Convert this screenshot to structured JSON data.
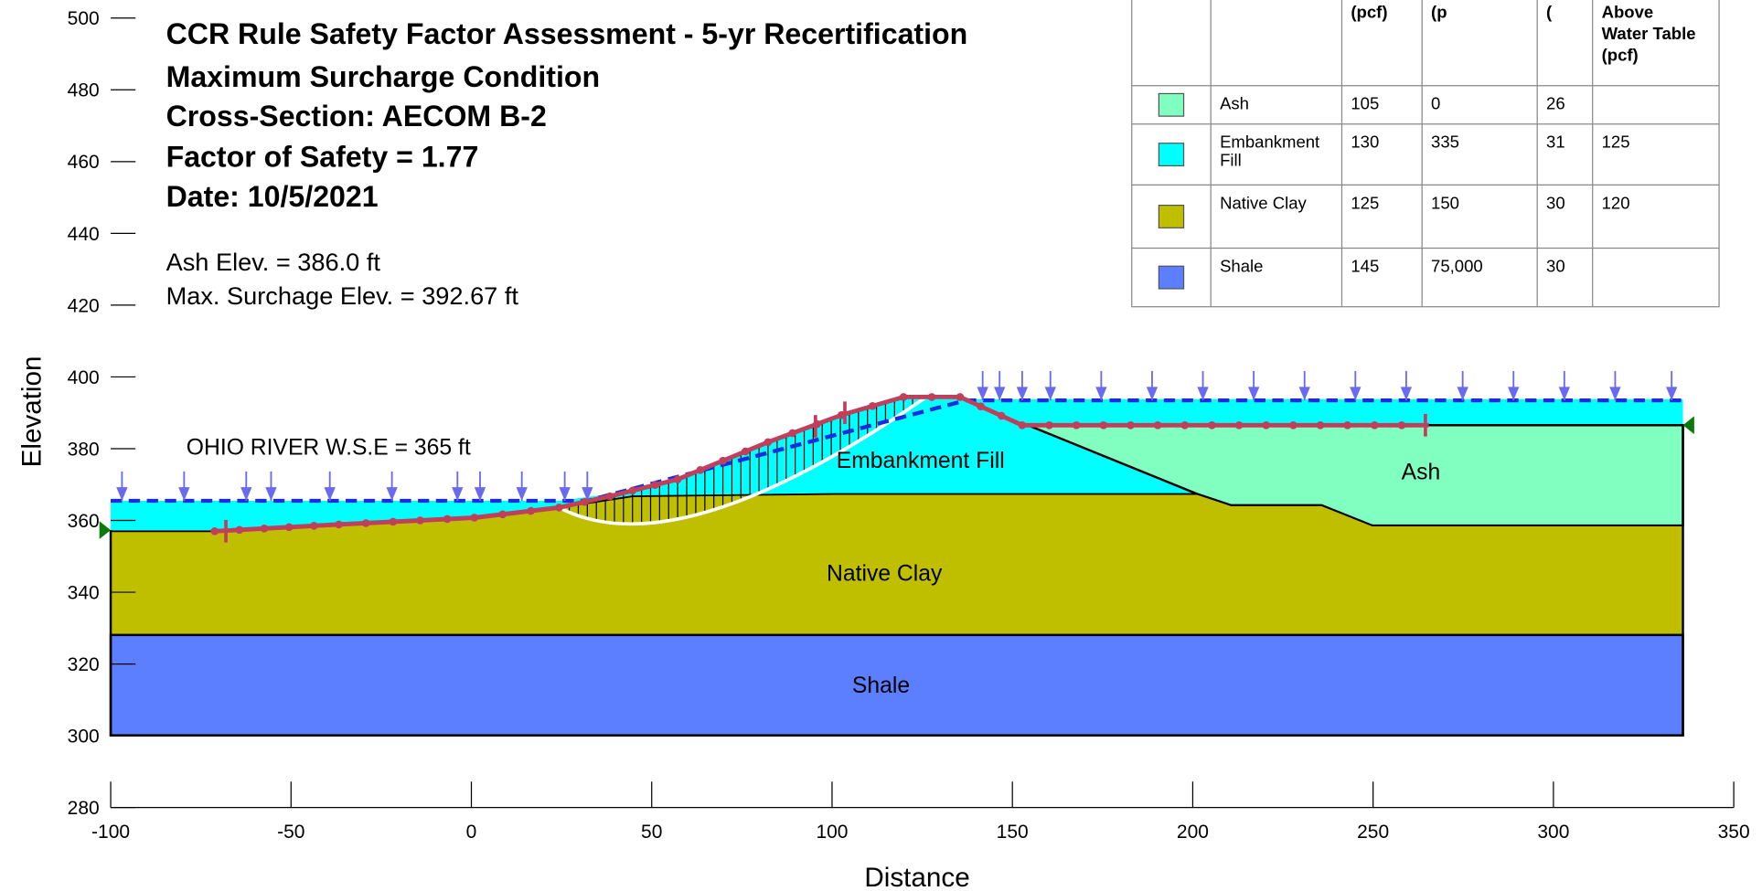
{
  "title_lines": [
    "CCR Rule Safety Factor Assessment - 5-yr Recertification",
    "Maximum Surcharge Condition",
    "Cross-Section: AECOM B-2",
    "Factor of Safety = 1.77",
    "Date: 10/5/2021"
  ],
  "notes": [
    "Ash Elev. = 386.0 ft",
    "Max. Surchage Elev. = 392.67 ft"
  ],
  "river_label": "OHIO RIVER W.S.E = 365 ft",
  "layer_labels": {
    "embankment": "Embankment Fill",
    "ash": "Ash",
    "clay": "Native Clay",
    "shale": "Shale"
  },
  "axes": {
    "x_label": "Distance",
    "y_label": "Elevation",
    "xlim": [
      -100,
      350
    ],
    "xticks": [
      -100,
      -50,
      0,
      50,
      100,
      150,
      200,
      250,
      300,
      350
    ],
    "ylim": [
      280,
      500
    ],
    "yticks": [
      280,
      300,
      320,
      340,
      360,
      380,
      400,
      420,
      440,
      460,
      480,
      500
    ]
  },
  "table": {
    "header": [
      "(pcf)",
      "(p",
      "(",
      "Above Water Table (pcf)"
    ],
    "rows": [
      {
        "color": "#80ffc0",
        "cells": [
          "Ash",
          "105",
          "0",
          "26",
          null
        ]
      },
      {
        "color": "#00ffff",
        "cells": [
          "Embankment Fill",
          "130",
          "335",
          "31",
          "125"
        ]
      },
      {
        "color": "#bfbf00",
        "cells": [
          "Native Clay",
          "125",
          "150",
          "30",
          "120"
        ]
      },
      {
        "color": "#5b7fff",
        "cells": [
          "Shale",
          "145",
          "75,000",
          "30",
          null
        ]
      }
    ]
  }
}
